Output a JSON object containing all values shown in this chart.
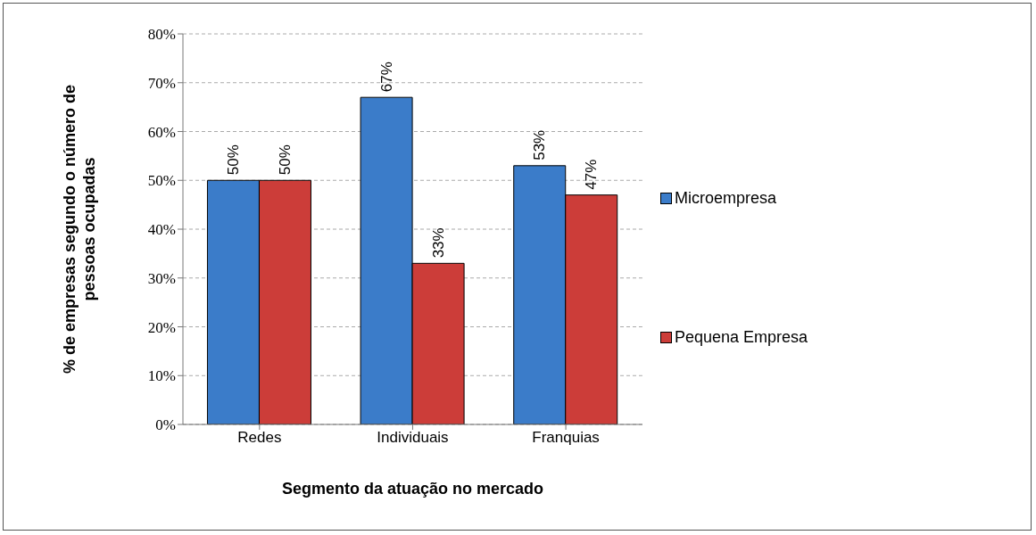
{
  "chart_data": {
    "type": "bar",
    "xlabel": "Segmento da atuação no mercado",
    "ylabel": "% de empresas segundo o número de pessoas ocupadas",
    "categories": [
      "Redes",
      "Individuais",
      "Franquias"
    ],
    "series": [
      {
        "name": "Microempresa",
        "color": "#3b7cc9",
        "values": [
          50,
          67,
          53
        ],
        "value_labels": [
          "50%",
          "67%",
          "53%"
        ]
      },
      {
        "name": "Pequena Empresa",
        "color": "#cc3d39",
        "values": [
          50,
          33,
          47
        ],
        "value_labels": [
          "50%",
          "33%",
          "47%"
        ]
      }
    ],
    "ylim": [
      0,
      80
    ],
    "yticks": [
      {
        "value": 0,
        "label": "0%"
      },
      {
        "value": 10,
        "label": "10%"
      },
      {
        "value": 20,
        "label": "20%"
      },
      {
        "value": 30,
        "label": "30%"
      },
      {
        "value": 40,
        "label": "40%"
      },
      {
        "value": 50,
        "label": "50%"
      },
      {
        "value": 60,
        "label": "60%"
      },
      {
        "value": 70,
        "label": "70%"
      },
      {
        "value": 80,
        "label": "80%"
      }
    ],
    "grid": "y",
    "legend": "right"
  }
}
